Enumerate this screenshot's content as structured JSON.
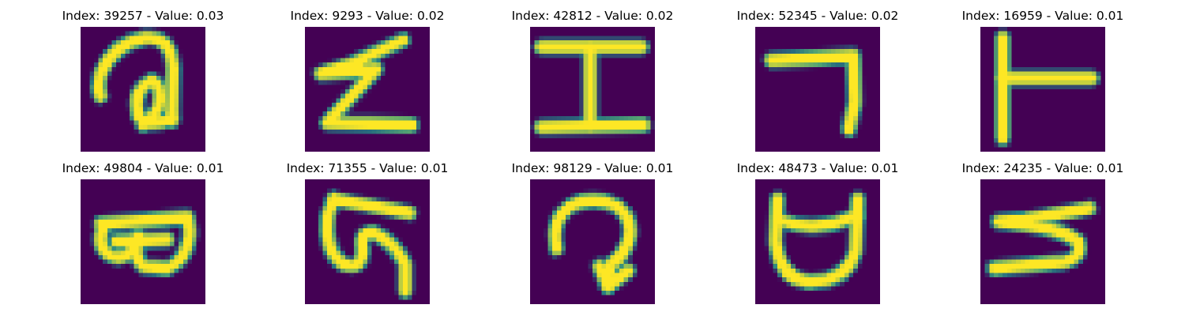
{
  "colormap": {
    "background": "#440154",
    "mid": "#21918c",
    "stroke": "#fde725"
  },
  "panels": [
    {
      "title": "Index: 39257 - Value: 0.03",
      "glyph": "loop-like-a"
    },
    {
      "title": "Index: 9293 - Value: 0.02",
      "glyph": "zigzag-z"
    },
    {
      "title": "Index: 42812 - Value: 0.02",
      "glyph": "capital-i"
    },
    {
      "title": "Index: 52345 - Value: 0.02",
      "glyph": "seven-like"
    },
    {
      "title": "Index: 16959 - Value: 0.01",
      "glyph": "t-sideways"
    },
    {
      "title": "Index: 49804 - Value: 0.01",
      "glyph": "double-loop"
    },
    {
      "title": "Index: 71355 - Value: 0.01",
      "glyph": "s-curve"
    },
    {
      "title": "Index: 98129 - Value: 0.01",
      "glyph": "hook-arrow"
    },
    {
      "title": "Index: 48473 - Value: 0.01",
      "glyph": "cup-shape"
    },
    {
      "title": "Index: 24235 - Value: 0.01",
      "glyph": "reverse-s"
    }
  ]
}
